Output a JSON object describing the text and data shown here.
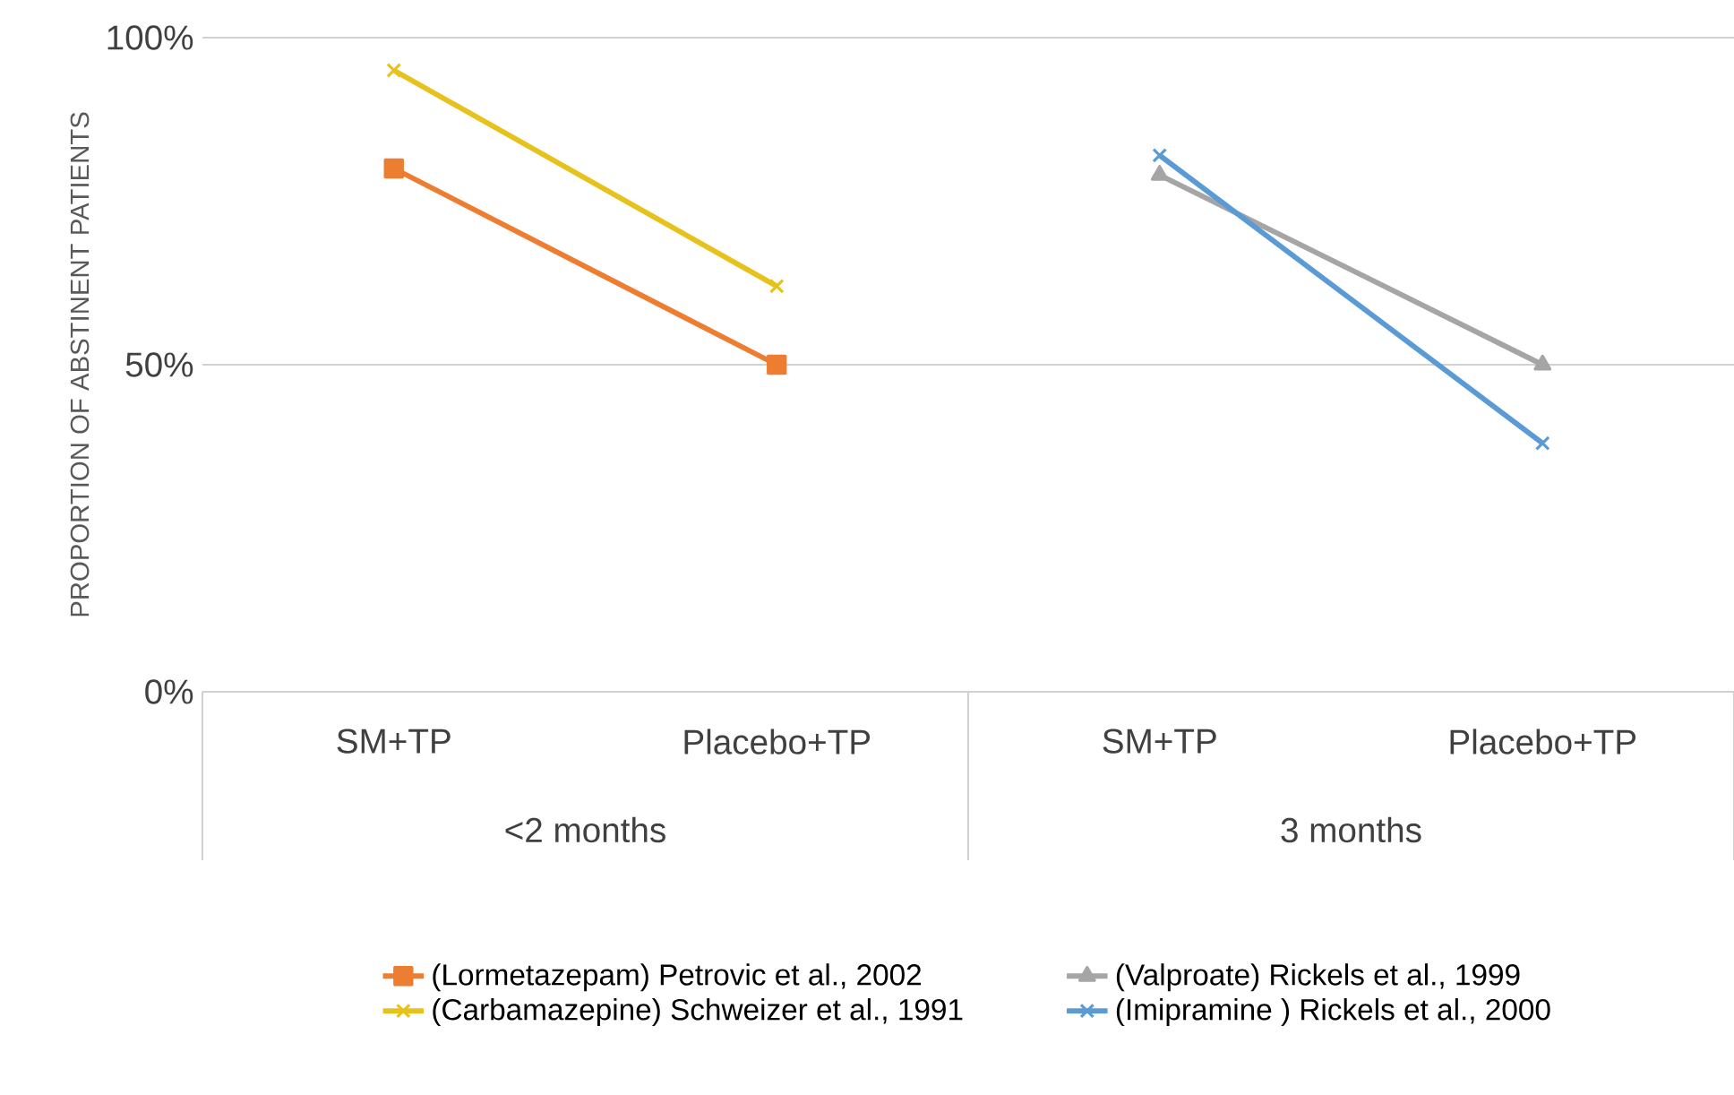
{
  "chart_data": {
    "type": "line",
    "ylabel": "PROPORTION OF ABSTINENT PATIENTS",
    "categories": [
      "SM+TP",
      "Placebo+TP",
      "SM+TP",
      "Placebo+TP"
    ],
    "annotations": [
      "<2 months",
      "3 months"
    ],
    "ylim": [
      0,
      100
    ],
    "yticks": [
      {
        "value": 0,
        "label": "0%"
      },
      {
        "value": 50,
        "label": "50%"
      },
      {
        "value": 100,
        "label": "100%"
      }
    ],
    "grid": "y",
    "legend": "bottom",
    "series": [
      {
        "name": "(Lormetazepam) Petrovic et al., 2002",
        "color": "#ed7d31",
        "marker": "square",
        "values": [
          80,
          50,
          null,
          null
        ]
      },
      {
        "name": "(Valproate) Rickels et al., 1999",
        "color": "#a5a5a5",
        "marker": "triangle",
        "values": [
          null,
          null,
          79,
          50
        ]
      },
      {
        "name": "(Carbamazepine) Schweizer et al., 1991",
        "color": "#e8c21c",
        "marker": "cross",
        "values": [
          95,
          62,
          null,
          null
        ]
      },
      {
        "name": "(Imipramine ) Rickels et al., 2000",
        "color": "#5b9bd5",
        "marker": "cross",
        "values": [
          null,
          null,
          82,
          38
        ]
      }
    ]
  }
}
